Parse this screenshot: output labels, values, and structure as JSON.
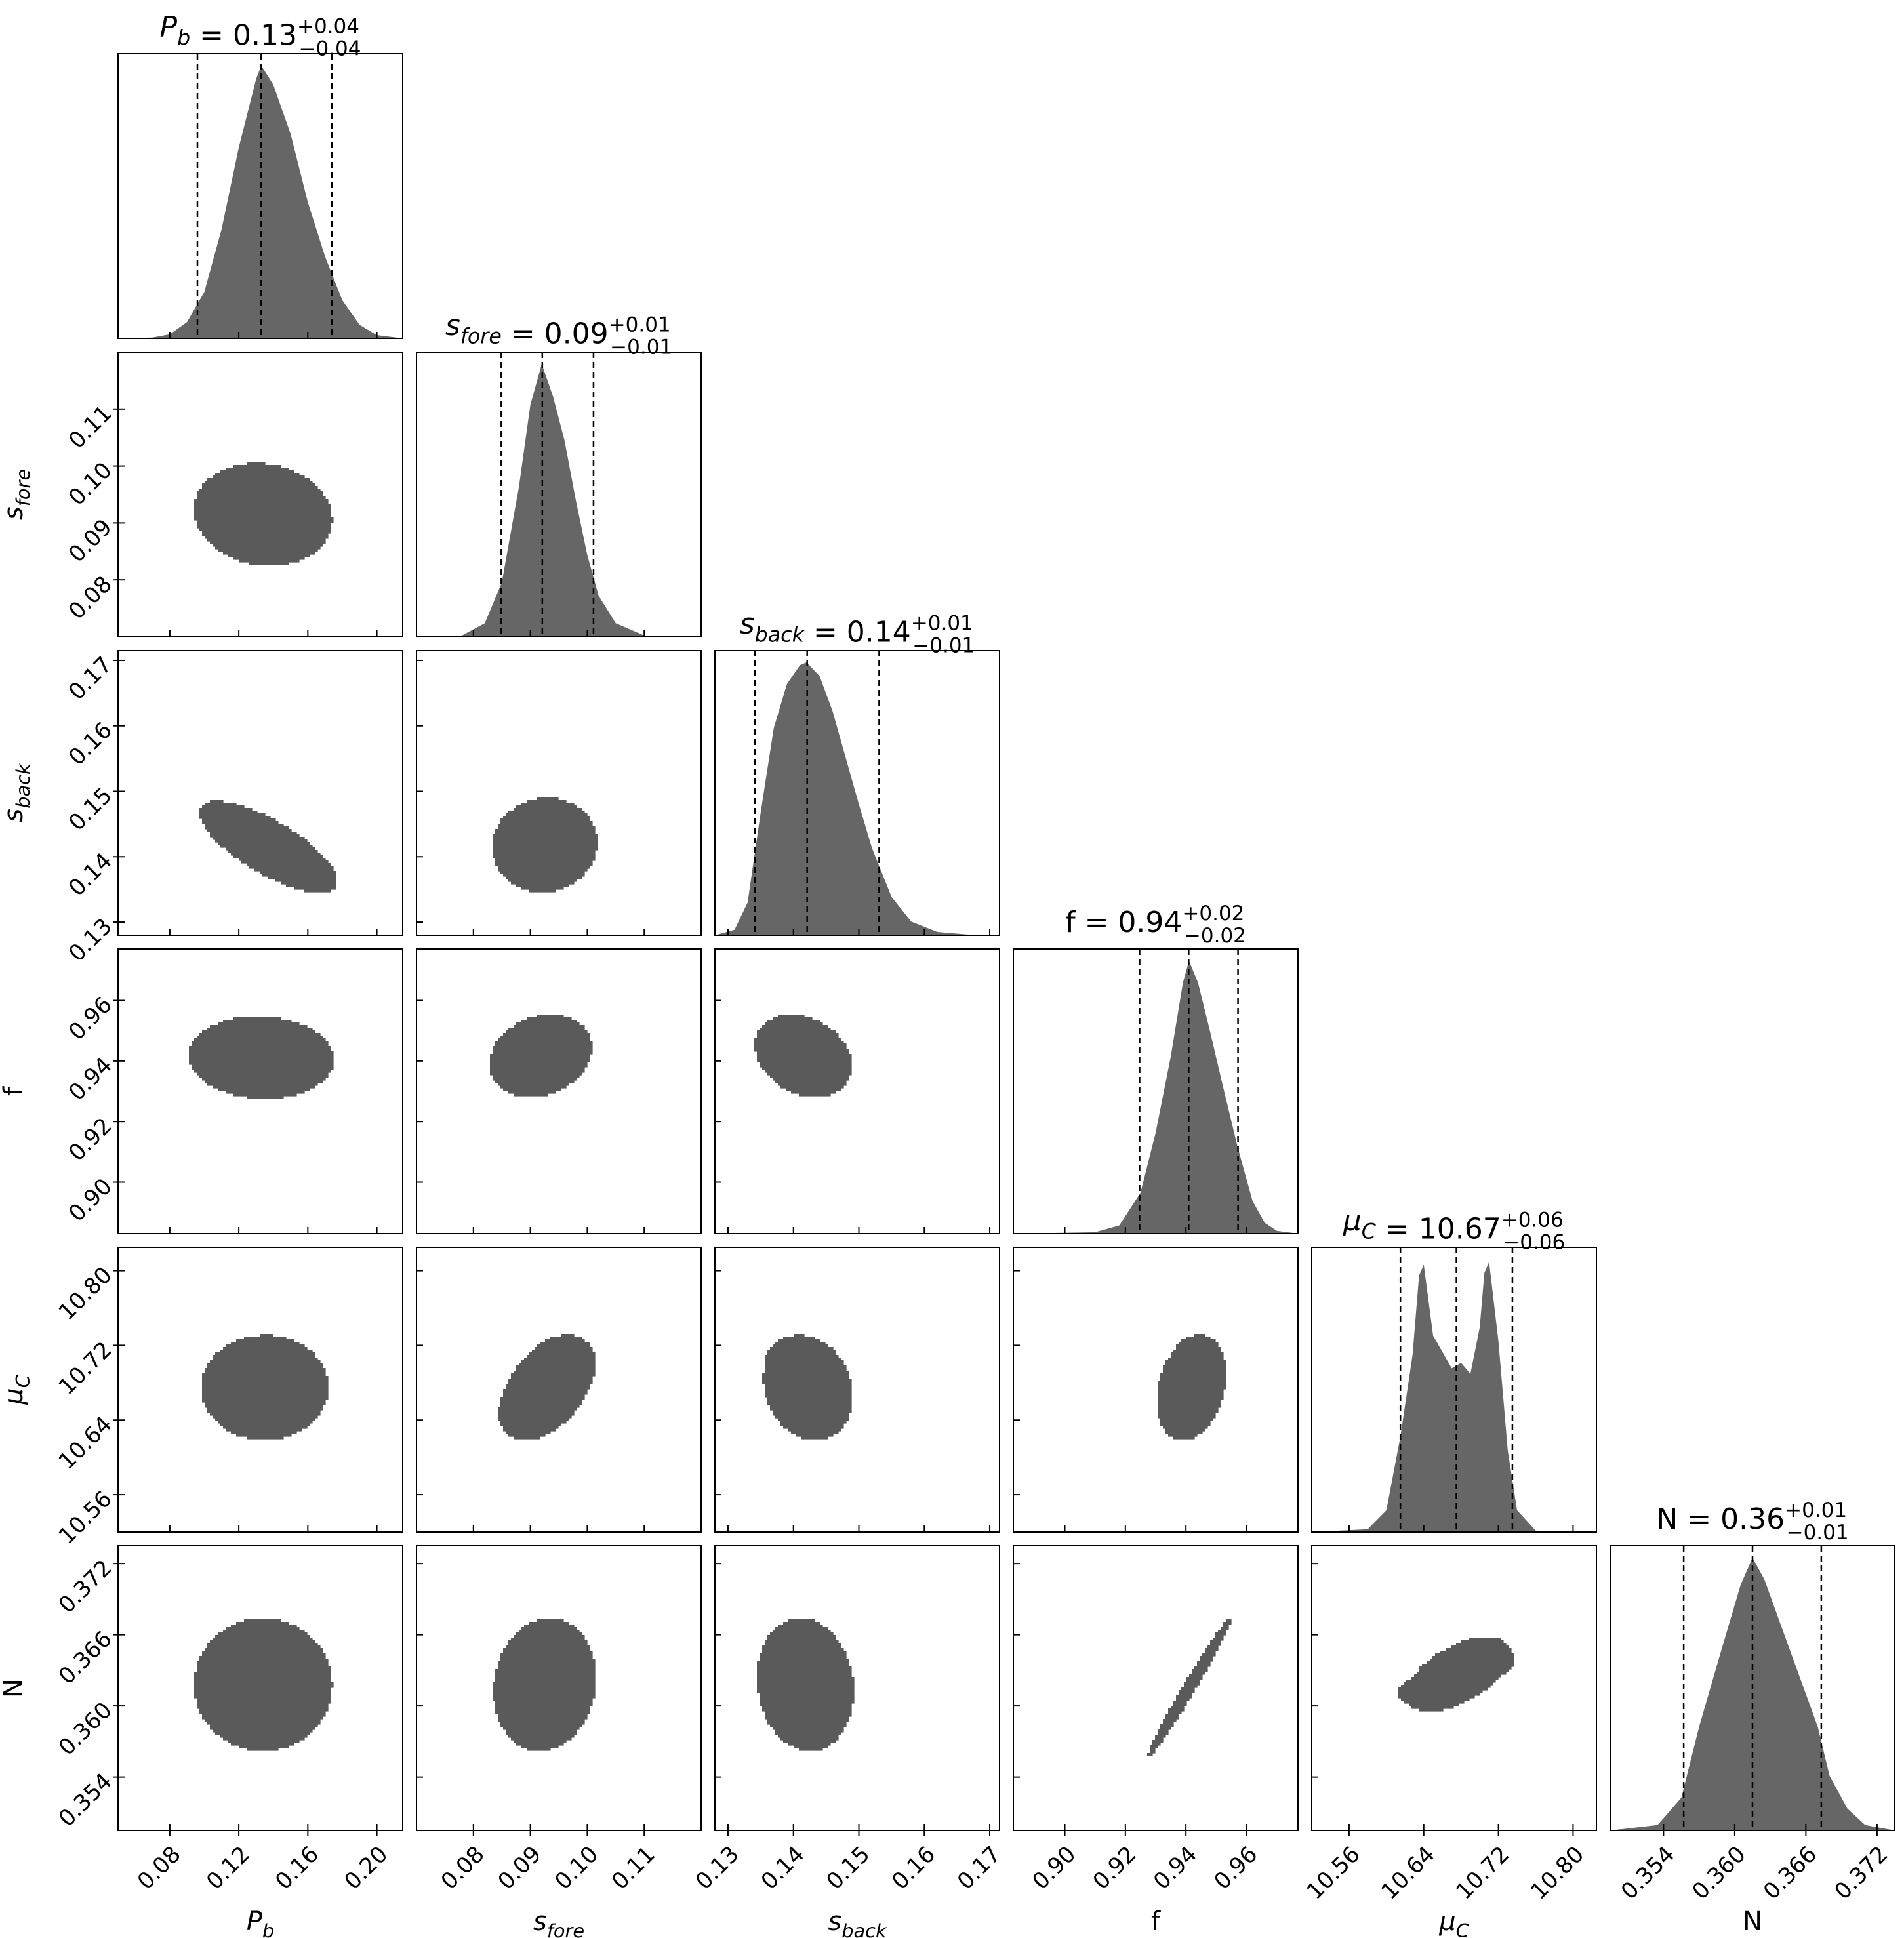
{
  "chart_data": {
    "type": "corner",
    "params": [
      {
        "key": "Pb",
        "label": "P_b",
        "range": [
          0.05,
          0.215
        ],
        "ticks": [
          0.08,
          0.12,
          0.16,
          0.2
        ],
        "tick_labels": [
          "0.08",
          "0.12",
          "0.16",
          "0.20"
        ],
        "title": "P_b = 0.13",
        "median": 0.13,
        "upper_err": "+0.04",
        "lower_err": "−0.04",
        "quantiles": [
          0.096,
          0.133,
          0.174
        ]
      },
      {
        "key": "sfore",
        "label": "s_fore",
        "range": [
          0.07,
          0.12
        ],
        "ticks": [
          0.08,
          0.09,
          0.1,
          0.11
        ],
        "tick_labels": [
          "0.08",
          "0.09",
          "0.10",
          "0.11"
        ],
        "title": "s_fore = 0.09",
        "median": 0.09,
        "upper_err": "+0.01",
        "lower_err": "−0.01",
        "quantiles": [
          0.0849,
          0.0921,
          0.1011
        ]
      },
      {
        "key": "sback",
        "label": "s_back",
        "range": [
          0.128,
          0.1715
        ],
        "ticks": [
          0.13,
          0.14,
          0.15,
          0.16,
          0.17
        ],
        "tick_labels": [
          "0.13",
          "0.14",
          "0.15",
          "0.16",
          "0.17"
        ],
        "title": "s_back = 0.14",
        "median": 0.14,
        "upper_err": "+0.01",
        "lower_err": "−0.01",
        "quantiles": [
          0.1341,
          0.1421,
          0.1531
        ]
      },
      {
        "key": "f",
        "label": "f",
        "range": [
          0.883,
          0.977
        ],
        "ticks": [
          0.9,
          0.92,
          0.94,
          0.96
        ],
        "tick_labels": [
          "0.90",
          "0.92",
          "0.94",
          "0.96"
        ],
        "title": "f = 0.94",
        "median": 0.94,
        "upper_err": "+0.02",
        "lower_err": "−0.02",
        "quantiles": [
          0.9247,
          0.9409,
          0.9572
        ]
      },
      {
        "key": "muC",
        "label": "μ_C",
        "range": [
          10.52,
          10.825
        ],
        "ticks": [
          10.56,
          10.64,
          10.72,
          10.8
        ],
        "tick_labels": [
          "10.56",
          "10.64",
          "10.72",
          "10.80"
        ],
        "title": "μ_C = 10.67",
        "median": 10.67,
        "upper_err": "+0.06",
        "lower_err": "−0.06",
        "quantiles": [
          10.615,
          10.675,
          10.735
        ]
      },
      {
        "key": "N",
        "label": "N",
        "range": [
          0.3495,
          0.3735
        ],
        "ticks": [
          0.354,
          0.36,
          0.366,
          0.372
        ],
        "tick_labels": [
          "0.354",
          "0.360",
          "0.366",
          "0.372"
        ],
        "title": "N = 0.36",
        "median": 0.36,
        "upper_err": "+0.01",
        "lower_err": "−0.01",
        "quantiles": [
          0.3557,
          0.3615,
          0.3673
        ]
      }
    ],
    "histograms": [
      {
        "param": "Pb",
        "x": [
          0.05,
          0.07,
          0.08,
          0.09,
          0.1,
          0.11,
          0.12,
          0.13,
          0.133,
          0.14,
          0.15,
          0.16,
          0.17,
          0.18,
          0.19,
          0.2,
          0.215
        ],
        "y": [
          0,
          0.003,
          0.015,
          0.06,
          0.17,
          0.4,
          0.7,
          0.95,
          1.0,
          0.93,
          0.75,
          0.5,
          0.3,
          0.14,
          0.05,
          0.012,
          0
        ]
      },
      {
        "param": "sfore",
        "x": [
          0.07,
          0.078,
          0.082,
          0.085,
          0.088,
          0.09,
          0.092,
          0.094,
          0.096,
          0.098,
          0.1,
          0.102,
          0.105,
          0.11,
          0.12
        ],
        "y": [
          0,
          0.005,
          0.05,
          0.2,
          0.55,
          0.85,
          1.0,
          0.88,
          0.72,
          0.5,
          0.3,
          0.15,
          0.05,
          0.005,
          0
        ]
      },
      {
        "param": "sback",
        "x": [
          0.128,
          0.131,
          0.133,
          0.135,
          0.137,
          0.139,
          0.141,
          0.142,
          0.144,
          0.146,
          0.148,
          0.15,
          0.152,
          0.155,
          0.158,
          0.162,
          0.167,
          0.1715
        ],
        "y": [
          0,
          0.02,
          0.12,
          0.45,
          0.76,
          0.92,
          0.99,
          1.0,
          0.95,
          0.82,
          0.65,
          0.48,
          0.32,
          0.14,
          0.05,
          0.012,
          0.002,
          0
        ]
      },
      {
        "param": "f",
        "x": [
          0.883,
          0.91,
          0.918,
          0.925,
          0.93,
          0.935,
          0.939,
          0.941,
          0.944,
          0.948,
          0.952,
          0.957,
          0.962,
          0.966,
          0.97,
          0.977
        ],
        "y": [
          0,
          0.005,
          0.03,
          0.15,
          0.37,
          0.65,
          0.92,
          1.0,
          0.92,
          0.74,
          0.55,
          0.32,
          0.12,
          0.04,
          0.01,
          0
        ]
      },
      {
        "param": "muC",
        "x": [
          10.52,
          10.58,
          10.6,
          10.615,
          10.628,
          10.635,
          10.64,
          10.65,
          10.66,
          10.67,
          10.68,
          10.69,
          10.7,
          10.705,
          10.71,
          10.72,
          10.73,
          10.74,
          10.76,
          10.825
        ],
        "y": [
          0,
          0.01,
          0.08,
          0.35,
          0.65,
          0.94,
          0.98,
          0.72,
          0.66,
          0.6,
          0.62,
          0.58,
          0.75,
          0.95,
          0.99,
          0.7,
          0.3,
          0.08,
          0.005,
          0
        ]
      },
      {
        "param": "N",
        "x": [
          0.3495,
          0.3535,
          0.3555,
          0.357,
          0.359,
          0.3605,
          0.3615,
          0.3625,
          0.364,
          0.3655,
          0.367,
          0.368,
          0.3695,
          0.371,
          0.3735
        ],
        "y": [
          0,
          0.02,
          0.12,
          0.38,
          0.68,
          0.9,
          1.0,
          0.92,
          0.74,
          0.56,
          0.38,
          0.2,
          0.08,
          0.02,
          0
        ]
      }
    ],
    "contours": [
      {
        "row": "sfore",
        "col": "Pb",
        "center": [
          0.134,
          0.0915
        ],
        "s": [
          0.02,
          0.0045
        ],
        "rho": -0.1,
        "blobs": []
      },
      {
        "row": "sback",
        "col": "Pb",
        "center": [
          0.137,
          0.1415
        ],
        "s": [
          0.02,
          0.0035
        ],
        "rho": -0.75,
        "blobs": []
      },
      {
        "row": "sback",
        "col": "sfore",
        "center": [
          0.0925,
          0.1418
        ],
        "s": [
          0.0046,
          0.0036
        ],
        "rho": 0.05,
        "blobs": []
      },
      {
        "row": "f",
        "col": "Pb",
        "center": [
          0.133,
          0.9412
        ],
        "s": [
          0.021,
          0.0068
        ],
        "rho": -0.05,
        "blobs": []
      },
      {
        "row": "f",
        "col": "sfore",
        "center": [
          0.0918,
          0.9418
        ],
        "s": [
          0.0045,
          0.0068
        ],
        "rho": 0.2,
        "blobs": []
      },
      {
        "row": "f",
        "col": "sback",
        "center": [
          0.1415,
          0.9418
        ],
        "s": [
          0.0037,
          0.0068
        ],
        "rho": -0.25,
        "blobs": []
      },
      {
        "row": "muC",
        "col": "Pb",
        "center": [
          0.135,
          10.675
        ],
        "s": [
          0.02,
          0.03
        ],
        "rho": 0,
        "blobs": [
          [
            0.137,
            10.707
          ],
          [
            0.134,
            10.643
          ]
        ]
      },
      {
        "row": "muC",
        "col": "sfore",
        "center": [
          0.093,
          10.675
        ],
        "s": [
          0.0045,
          0.03
        ],
        "rho": 0.45,
        "blobs": [
          [
            0.0955,
            10.708
          ],
          [
            0.0895,
            10.643
          ]
        ]
      },
      {
        "row": "muC",
        "col": "sback",
        "center": [
          0.1422,
          10.675
        ],
        "s": [
          0.0037,
          0.03
        ],
        "rho": -0.15,
        "blobs": [
          [
            0.1397,
            10.708
          ],
          [
            0.1435,
            10.643
          ]
        ]
      },
      {
        "row": "muC",
        "col": "f",
        "center": [
          0.9418,
          10.675
        ],
        "s": [
          0.0062,
          0.03
        ],
        "rho": 0.25,
        "blobs": [
          [
            0.9435,
            10.709
          ],
          [
            0.9395,
            10.643
          ]
        ]
      },
      {
        "row": "N",
        "col": "Pb",
        "center": [
          0.134,
          0.3618
        ],
        "s": [
          0.02,
          0.0028
        ],
        "rho": 0,
        "blobs": []
      },
      {
        "row": "N",
        "col": "sfore",
        "center": [
          0.0925,
          0.3618
        ],
        "s": [
          0.0045,
          0.0028
        ],
        "rho": 0.1,
        "blobs": []
      },
      {
        "row": "N",
        "col": "sback",
        "center": [
          0.1418,
          0.3618
        ],
        "s": [
          0.0037,
          0.0028
        ],
        "rho": -0.1,
        "blobs": []
      },
      {
        "row": "N",
        "col": "f",
        "center": [
          0.9412,
          0.3616
        ],
        "s": [
          0.0068,
          0.0029
        ],
        "rho": 0.985,
        "blobs": []
      },
      {
        "row": "N",
        "col": "muC",
        "center": [
          10.677,
          0.3627
        ],
        "s": [
          0.03,
          0.0017
        ],
        "rho": 0.55,
        "blobs": [
          [
            10.637,
            0.3612
          ],
          [
            10.709,
            0.3637
          ]
        ]
      }
    ],
    "contour_levels": [
      0.5,
      1.0,
      1.5,
      2.0
    ],
    "contour_fill_colors": [
      "#dcdcdc",
      "#b4b4b4",
      "#8a8a8a",
      "#5a5a5a",
      "#000000"
    ],
    "histogram_fill_color": "#666666"
  }
}
